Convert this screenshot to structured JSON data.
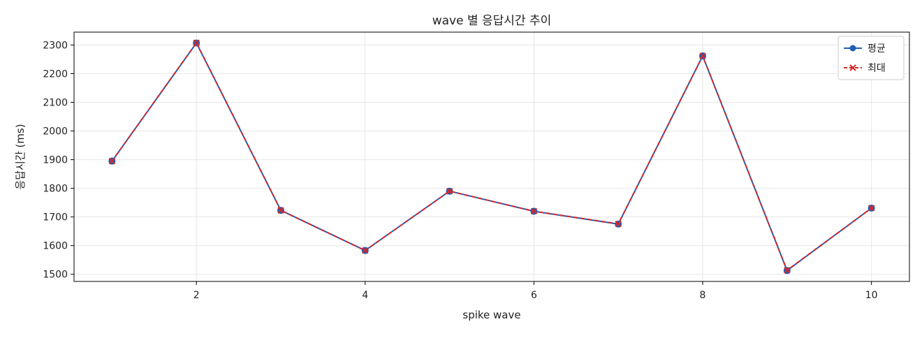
{
  "chart_data": {
    "type": "line",
    "title": "wave 별 응답시간 추이",
    "xlabel": "spike wave",
    "ylabel": "응답시간 (ms)",
    "x": [
      1,
      2,
      3,
      4,
      5,
      6,
      7,
      8,
      9,
      10
    ],
    "xlim": [
      0.55,
      10.45
    ],
    "ylim": [
      1475,
      2345
    ],
    "x_ticks": [
      2,
      4,
      6,
      8,
      10
    ],
    "y_ticks": [
      1500,
      1600,
      1700,
      1800,
      1900,
      2000,
      2100,
      2200,
      2300
    ],
    "grid": true,
    "legend_position": "top-right",
    "series": [
      {
        "name": "평균",
        "color": "#1f5fb4",
        "line_style": "solid",
        "marker": "circle",
        "values": [
          1895,
          2307,
          1723,
          1583,
          1790,
          1720,
          1675,
          2262,
          1513,
          1731
        ]
      },
      {
        "name": "최대",
        "color": "#d62728",
        "line_style": "dashed",
        "marker": "x",
        "values": [
          1895,
          2308,
          1723,
          1583,
          1790,
          1720,
          1676,
          2262,
          1514,
          1731
        ]
      }
    ]
  }
}
